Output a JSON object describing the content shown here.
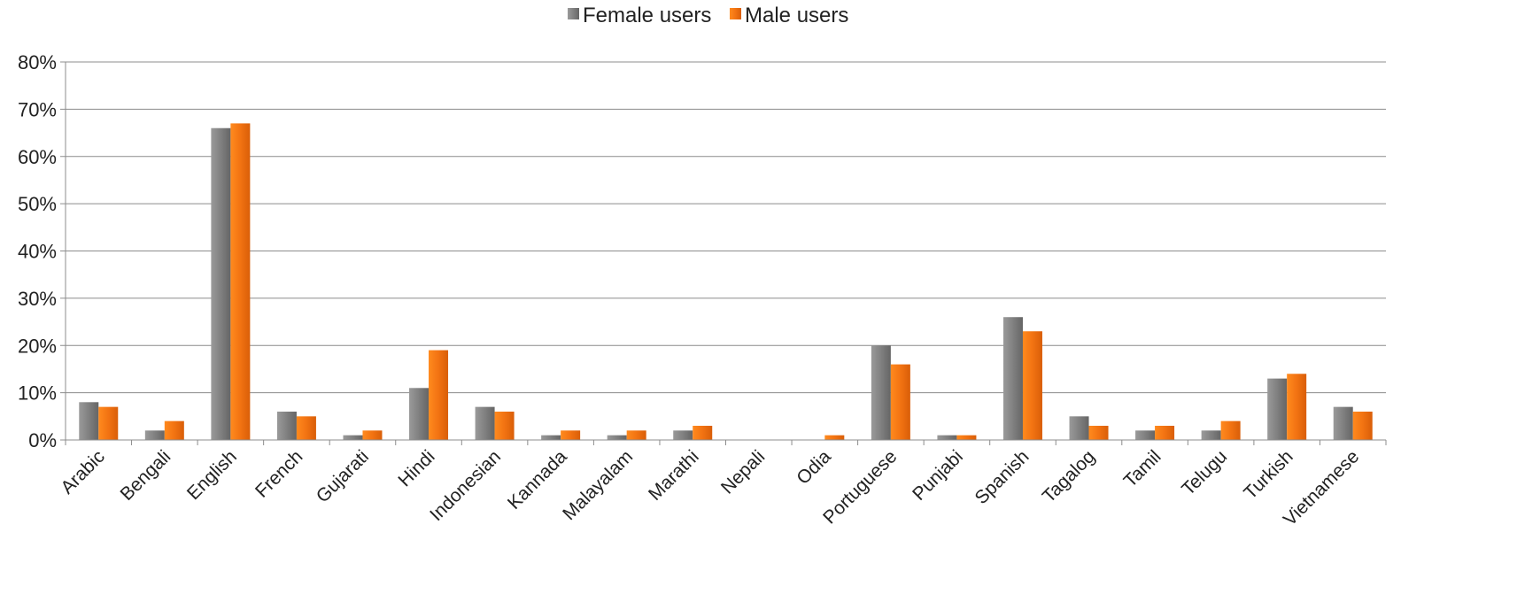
{
  "chart_data": {
    "type": "bar",
    "title": "",
    "xlabel": "",
    "ylabel": "",
    "ylim": [
      0,
      80
    ],
    "yticks": [
      "0%",
      "10%",
      "20%",
      "30%",
      "40%",
      "50%",
      "60%",
      "70%",
      "80%"
    ],
    "grid": true,
    "legend_placement": "top-center",
    "categories": [
      "Arabic",
      "Bengali",
      "English",
      "French",
      "Gujarati",
      "Hindi",
      "Indonesian",
      "Kannada",
      "Malayalam",
      "Marathi",
      "Nepali",
      "Odia",
      "Portuguese",
      "Punjabi",
      "Spanish",
      "Tagalog",
      "Tamil",
      "Telugu",
      "Turkish",
      "Vietnamese"
    ],
    "series": [
      {
        "name": "Female users",
        "color": "#7f7f7f",
        "values": [
          8,
          2,
          66,
          6,
          1,
          11,
          7,
          1,
          1,
          2,
          0,
          0,
          20,
          1,
          26,
          5,
          2,
          2,
          13,
          7
        ]
      },
      {
        "name": "Male users",
        "color": "#f47a14",
        "values": [
          7,
          4,
          67,
          5,
          2,
          19,
          6,
          2,
          2,
          3,
          0,
          1,
          16,
          1,
          23,
          3,
          3,
          4,
          14,
          6
        ]
      }
    ]
  }
}
